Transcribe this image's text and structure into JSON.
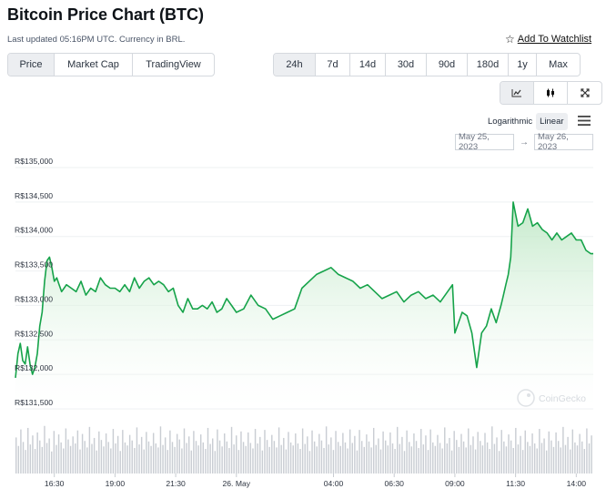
{
  "header": {
    "title": "Bitcoin Price Chart (BTC)",
    "subtitle": "Last updated 05:16PM UTC. Currency in BRL.",
    "watchlist_label": "Add To Watchlist",
    "watchlist_icon": "star-outline-icon"
  },
  "tabs": [
    "Price",
    "Market Cap",
    "TradingView"
  ],
  "active_tab": "Price",
  "ranges": [
    "24h",
    "7d",
    "14d",
    "30d",
    "90d",
    "180d",
    "1y",
    "Max"
  ],
  "active_range": "24h",
  "view_buttons": [
    "line-chart-icon",
    "candlestick-chart-icon",
    "fullscreen-icon"
  ],
  "scale": {
    "logarithmic": "Logarithmic",
    "linear": "Linear",
    "active": "Linear"
  },
  "date_range": {
    "from": "May 25, 2023",
    "to": "May 26, 2023",
    "separator": "→"
  },
  "watermark": "CoinGecko",
  "colors": {
    "line": "#16a34a",
    "fill_top": "#bfe8c6",
    "volume": "#c9cdd3",
    "grid": "#eef0f2",
    "active_btn": "#eceef1"
  },
  "chart_data": {
    "type": "area",
    "currency": "BRL",
    "y_ticks": [
      "R$131,500",
      "R$132,000",
      "R$132,500",
      "R$133,000",
      "R$133,500",
      "R$134,000",
      "R$134,500",
      "R$135,000"
    ],
    "y_tick_values": [
      131500,
      132000,
      132500,
      133000,
      133500,
      134000,
      134500,
      135000
    ],
    "ylim": [
      131500,
      135000
    ],
    "x_ticks": [
      "16:30",
      "19:00",
      "21:30",
      "26. May",
      "04:00",
      "06:30",
      "09:00",
      "11:30",
      "14:00"
    ],
    "x_tick_hours": [
      16.5,
      19,
      21.5,
      24,
      28,
      30.5,
      33,
      35.5,
      38
    ],
    "x_range_hours": [
      14.9,
      38.7
    ],
    "series": [
      {
        "x": [
          14.9,
          15.0,
          15.1,
          15.2,
          15.3,
          15.4,
          15.5,
          15.6,
          15.7,
          15.8,
          15.9,
          16.0,
          16.1,
          16.2,
          16.3,
          16.4,
          16.5,
          16.6,
          16.7,
          16.8,
          16.9,
          17.0,
          17.2,
          17.4,
          17.6,
          17.8,
          18.0,
          18.2,
          18.4,
          18.6,
          18.8,
          19.0,
          19.2,
          19.4,
          19.6,
          19.8,
          20.0,
          20.2,
          20.4,
          20.6,
          20.8,
          21.0,
          21.2,
          21.4,
          21.6,
          21.8,
          22.0,
          22.2,
          22.4,
          22.6,
          22.8,
          23.0,
          23.2,
          23.4,
          23.6,
          23.8,
          24.0,
          24.3,
          24.6,
          24.9,
          25.2,
          25.5,
          25.8,
          26.1,
          26.4,
          26.7,
          27.0,
          27.3,
          27.6,
          27.9,
          28.2,
          28.5,
          28.8,
          29.1,
          29.4,
          29.7,
          30.0,
          30.3,
          30.6,
          30.9,
          31.2,
          31.5,
          31.8,
          32.1,
          32.4,
          32.7,
          32.9,
          33.0,
          33.1,
          33.3,
          33.5,
          33.7,
          33.9,
          34.1,
          34.3,
          34.5,
          34.7,
          34.9,
          35.0,
          35.1,
          35.2,
          35.3,
          35.4,
          35.6,
          35.8,
          36.0,
          36.2,
          36.4,
          36.6,
          36.8,
          37.0,
          37.2,
          37.4,
          37.6,
          37.8,
          38.0,
          38.2,
          38.4,
          38.6,
          38.7
        ],
        "y": [
          131950,
          132300,
          132450,
          132200,
          132150,
          132400,
          132150,
          132000,
          132100,
          132300,
          132700,
          132900,
          133350,
          133650,
          133700,
          133550,
          133350,
          133400,
          133300,
          133200,
          133250,
          133300,
          133250,
          133200,
          133350,
          133150,
          133250,
          133200,
          133400,
          133300,
          133250,
          133250,
          133200,
          133300,
          133200,
          133400,
          133250,
          133350,
          133400,
          133300,
          133350,
          133300,
          133200,
          133250,
          133000,
          132900,
          133100,
          132950,
          132950,
          133000,
          132950,
          133050,
          132900,
          132950,
          133100,
          133000,
          132900,
          132950,
          133150,
          133000,
          132950,
          132800,
          132850,
          132900,
          132950,
          133250,
          133350,
          133450,
          133500,
          133550,
          133450,
          133400,
          133350,
          133250,
          133300,
          133200,
          133100,
          133150,
          133200,
          133050,
          133150,
          133200,
          133100,
          133150,
          133050,
          133200,
          133300,
          132600,
          132700,
          132900,
          132850,
          132600,
          132100,
          132600,
          132700,
          132950,
          132750,
          133000,
          133150,
          133300,
          133450,
          133700,
          134500,
          134150,
          134200,
          134400,
          134150,
          134200,
          134100,
          134050,
          133950,
          134050,
          133950,
          134000,
          134050,
          133950,
          133950,
          133800,
          133750,
          133750
        ]
      }
    ],
    "volume": {
      "unit": "relative (0-1)",
      "values": [
        0.72,
        0.55,
        0.88,
        0.63,
        0.47,
        0.91,
        0.58,
        0.76,
        0.49,
        0.82,
        0.66,
        0.53,
        0.95,
        0.61,
        0.7,
        0.44,
        0.85,
        0.57,
        0.78,
        0.62,
        0.5,
        0.9,
        0.68,
        0.55,
        0.74,
        0.6,
        0.86,
        0.48,
        0.79,
        0.65,
        0.52,
        0.93,
        0.59,
        0.71,
        0.46,
        0.84,
        0.67,
        0.54,
        0.8,
        0.63,
        0.5,
        0.89,
        0.6,
        0.75,
        0.45,
        0.87,
        0.62,
        0.56,
        0.77,
        0.66,
        0.51,
        0.92,
        0.58,
        0.73,
        0.48,
        0.83,
        0.64,
        0.55,
        0.81,
        0.6,
        0.52,
        0.94,
        0.57,
        0.72,
        0.47,
        0.86,
        0.63,
        0.53,
        0.79,
        0.68,
        0.5,
        0.9,
        0.61,
        0.74,
        0.46,
        0.85,
        0.65,
        0.56,
        0.78,
        0.62,
        0.49,
        0.91,
        0.59,
        0.7,
        0.45,
        0.88,
        0.66,
        0.54,
        0.8,
        0.64,
        0.51,
        0.93,
        0.58,
        0.76,
        0.47,
        0.84,
        0.63,
        0.55,
        0.82,
        0.61,
        0.5,
        0.89,
        0.6,
        0.73,
        0.46,
        0.87,
        0.67,
        0.53,
        0.77,
        0.65,
        0.52,
        0.92,
        0.57,
        0.71,
        0.48,
        0.83,
        0.62,
        0.56,
        0.8,
        0.6,
        0.49,
        0.9,
        0.59,
        0.74,
        0.45,
        0.86,
        0.64,
        0.54,
        0.79,
        0.66,
        0.51,
        0.94,
        0.58,
        0.72,
        0.47,
        0.85,
        0.63,
        0.55,
        0.81,
        0.62,
        0.5,
        0.88,
        0.61,
        0.75,
        0.46,
        0.87,
        0.65,
        0.53,
        0.78,
        0.64,
        0.52,
        0.91,
        0.57,
        0.7,
        0.48,
        0.84,
        0.66,
        0.56,
        0.82,
        0.6,
        0.49,
        0.93,
        0.59,
        0.73,
        0.45,
        0.86,
        0.63,
        0.54,
        0.8,
        0.65,
        0.51,
        0.89,
        0.58,
        0.76,
        0.47,
        0.88,
        0.62,
        0.55,
        0.77,
        0.61,
        0.5,
        0.92,
        0.6,
        0.71,
        0.46,
        0.85,
        0.67,
        0.53,
        0.79,
        0.64,
        0.52,
        0.9,
        0.57,
        0.74,
        0.48,
        0.83,
        0.65,
        0.56,
        0.81,
        0.62,
        0.49,
        0.94,
        0.59,
        0.72,
        0.45,
        0.87,
        0.64,
        0.54,
        0.78,
        0.66,
        0.51,
        0.91,
        0.58,
        0.75,
        0.47,
        0.86,
        0.63,
        0.55,
        0.8,
        0.6,
        0.5,
        0.89,
        0.61,
        0.7,
        0.46,
        0.84,
        0.66,
        0.53,
        0.82,
        0.65,
        0.52,
        0.93,
        0.57,
        0.73,
        0.48,
        0.88,
        0.62,
        0.56,
        0.79,
        0.64,
        0.49,
        0.9,
        0.6,
        0.76
      ]
    },
    "grid": true,
    "legend": false
  }
}
